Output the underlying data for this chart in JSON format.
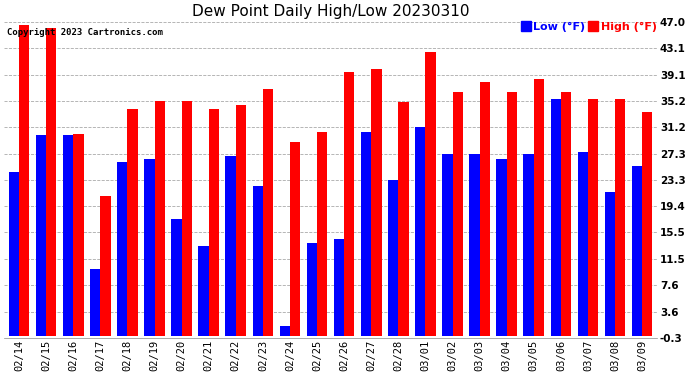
{
  "title": "Dew Point Daily High/Low 20230310",
  "copyright": "Copyright 2023 Cartronics.com",
  "legend_low": "Low",
  "legend_high": "High",
  "legend_unit": "(°F)",
  "dates": [
    "02/14",
    "02/15",
    "02/16",
    "02/17",
    "02/18",
    "02/19",
    "02/20",
    "02/21",
    "02/22",
    "02/23",
    "02/24",
    "02/25",
    "02/26",
    "02/27",
    "02/28",
    "03/01",
    "03/02",
    "03/03",
    "03/04",
    "03/05",
    "03/06",
    "03/07",
    "03/08",
    "03/09"
  ],
  "high_values": [
    46.5,
    46.0,
    30.2,
    21.0,
    34.0,
    35.2,
    35.2,
    34.0,
    34.5,
    37.0,
    29.0,
    30.5,
    39.5,
    40.0,
    35.0,
    42.5,
    36.5,
    38.0,
    36.5,
    38.5,
    36.5,
    35.5,
    35.5,
    33.5
  ],
  "low_values": [
    24.5,
    30.0,
    30.0,
    10.0,
    26.0,
    26.5,
    17.5,
    13.5,
    27.0,
    22.5,
    1.5,
    14.0,
    14.5,
    30.5,
    23.3,
    31.2,
    27.3,
    27.3,
    26.5,
    27.3,
    35.5,
    27.5,
    21.5,
    25.5
  ],
  "bar_width": 0.38,
  "high_color": "#ff0000",
  "low_color": "#0000ff",
  "bg_color": "#ffffff",
  "grid_color": "#aaaaaa",
  "yticks": [
    -0.3,
    3.6,
    7.6,
    11.5,
    15.5,
    19.4,
    23.3,
    27.3,
    31.2,
    35.2,
    39.1,
    43.1,
    47.0
  ],
  "ylim": [
    -0.3,
    47.0
  ],
  "title_fontsize": 11,
  "tick_fontsize": 7.5,
  "ylabel_fontsize": 8
}
